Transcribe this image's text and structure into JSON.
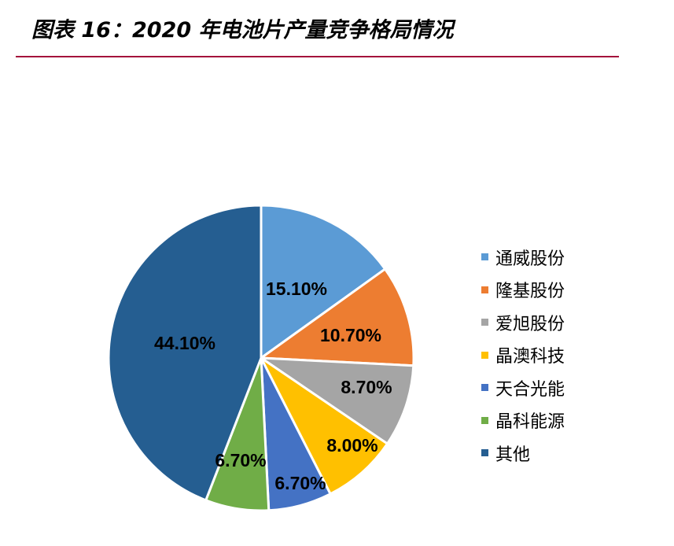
{
  "header": {
    "title": "图表 16：2020 年电池片产量竞争格局情况"
  },
  "chart_data": {
    "type": "pie",
    "title": "",
    "categories": [
      "通威股份",
      "隆基股份",
      "爱旭股份",
      "晶澳科技",
      "天合光能",
      "晶科能源",
      "其他"
    ],
    "values": [
      15.1,
      10.7,
      8.7,
      8.0,
      6.7,
      6.7,
      44.1
    ],
    "data_labels": [
      "15.10%",
      "10.70%",
      "8.70%",
      "8.00%",
      "6.70%",
      "6.70%",
      "44.10%"
    ],
    "colors": [
      "#5b9bd5",
      "#ed7d31",
      "#a5a5a5",
      "#ffc000",
      "#4472c4",
      "#70ad47",
      "#255e91"
    ],
    "legend_position": "right",
    "start_angle": "12 o'clock, clockwise"
  },
  "legend": {
    "items": [
      {
        "label": "通威股份",
        "color": "#5b9bd5"
      },
      {
        "label": "隆基股份",
        "color": "#ed7d31"
      },
      {
        "label": "爱旭股份",
        "color": "#a5a5a5"
      },
      {
        "label": "晶澳科技",
        "color": "#ffc000"
      },
      {
        "label": "天合光能",
        "color": "#4472c4"
      },
      {
        "label": "晶科能源",
        "color": "#70ad47"
      },
      {
        "label": "其他",
        "color": "#255e91"
      }
    ]
  }
}
